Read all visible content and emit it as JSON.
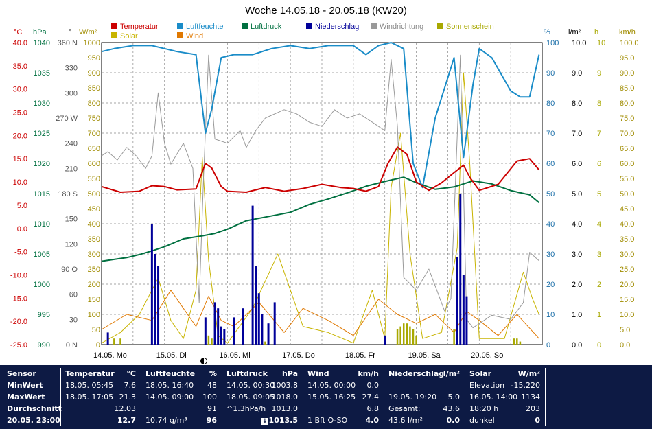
{
  "chart_data": {
    "type": "line",
    "title": "Woche 14.05.18 - 20.05.18 (KW20)",
    "legend": [
      {
        "name": "Temperatur",
        "color": "#cc0000"
      },
      {
        "name": "Luftfeuchte",
        "color": "#1a8cc8"
      },
      {
        "name": "Luftdruck",
        "color": "#007040"
      },
      {
        "name": "Niederschlag",
        "color": "#000099"
      },
      {
        "name": "Windrichtung",
        "color": "#999999"
      },
      {
        "name": "Sonnenschein",
        "color": "#a8a800"
      },
      {
        "name": "Solar",
        "color": "#c8b400"
      },
      {
        "name": "Wind",
        "color": "#e07800"
      }
    ],
    "x_labels": [
      "14.05. Mo",
      "15.05. Di",
      "16.05. Mi",
      "17.05. Do",
      "18.05. Fr",
      "19.05. Sa",
      "20.05. So"
    ],
    "x_range_days": [
      0,
      7
    ],
    "axes": {
      "temp": {
        "unit": "°C",
        "color": "#cc0000",
        "range": [
          -25,
          40
        ],
        "ticks": [
          "40.0",
          "35.0",
          "30.0",
          "25.0",
          "20.0",
          "15.0",
          "10.0",
          "5.0",
          "0.0",
          "-5.0",
          "-10.0",
          "-15.0",
          "-20.0",
          "-25.0"
        ]
      },
      "pressure": {
        "unit": "hPa",
        "color": "#007040",
        "range": [
          990,
          1040
        ],
        "ticks": [
          "1040",
          "1035",
          "1030",
          "1025",
          "1020",
          "1015",
          "1010",
          "1005",
          "1000",
          "995",
          "990"
        ]
      },
      "winddir": {
        "unit": "°",
        "color": "#555555",
        "ticks": [
          "360 N",
          "330",
          "300",
          "270 W",
          "240",
          "210",
          "180 S",
          "150",
          "120",
          "90 O",
          "60",
          "30",
          "0 N"
        ]
      },
      "solar": {
        "unit": "W/m²",
        "color": "#a08c00",
        "range": [
          0,
          1000
        ],
        "ticks": [
          "1000",
          "950",
          "900",
          "850",
          "800",
          "750",
          "700",
          "650",
          "600",
          "550",
          "500",
          "450",
          "400",
          "350",
          "300",
          "250",
          "200",
          "150",
          "100",
          "50",
          "0"
        ]
      },
      "humidity": {
        "unit": "%",
        "color": "#1a6ea8",
        "range": [
          0,
          100
        ],
        "ticks": [
          "100",
          "90",
          "80",
          "70",
          "60",
          "50",
          "40",
          "30",
          "20",
          "10",
          "0"
        ]
      },
      "rain": {
        "unit": "l/m²",
        "color": "#000000",
        "range": [
          0,
          10
        ],
        "ticks": [
          "10.0",
          "9.0",
          "8.0",
          "7.0",
          "6.0",
          "5.0",
          "4.0",
          "3.0",
          "2.0",
          "1.0",
          "0.0"
        ]
      },
      "sunhours": {
        "unit": "h",
        "color": "#a8a800",
        "range": [
          0,
          10
        ],
        "ticks": [
          "10",
          "9",
          "8",
          "7",
          "6",
          "5",
          "4",
          "3",
          "2",
          "1",
          "0"
        ]
      },
      "wind": {
        "unit": "km/h",
        "color": "#a08c00",
        "range": [
          0,
          100
        ],
        "ticks": [
          "100.0",
          "95.0",
          "90.0",
          "85.0",
          "80.0",
          "75.0",
          "70.0",
          "65.0",
          "60.0",
          "55.0",
          "50.0",
          "45.0",
          "40.0",
          "35.0",
          "30.0",
          "25.0",
          "20.0",
          "15.0",
          "10.0",
          "5.0",
          "0.0"
        ]
      }
    },
    "series": [
      {
        "name": "Temperatur",
        "axis": "temp",
        "color": "#cc0000",
        "x": [
          0,
          0.3,
          0.6,
          0.8,
          1.0,
          1.2,
          1.5,
          1.65,
          1.75,
          1.9,
          2.0,
          2.3,
          2.6,
          2.9,
          3.2,
          3.5,
          3.8,
          4.0,
          4.2,
          4.4,
          4.55,
          4.7,
          4.85,
          5.0,
          5.2,
          5.4,
          5.6,
          5.75,
          5.85,
          6.0,
          6.3,
          6.6,
          6.8,
          6.95
        ],
        "y": [
          9,
          7.8,
          8,
          9.2,
          9,
          8.3,
          8.5,
          14,
          13,
          9,
          8,
          7.8,
          8.8,
          8,
          8.6,
          9.5,
          8.8,
          8.6,
          8,
          9,
          14,
          17.5,
          16,
          10,
          8.2,
          9.8,
          12,
          13.6,
          11,
          8.2,
          9.5,
          14.5,
          15,
          12.6
        ]
      },
      {
        "name": "Luftfeuchte",
        "axis": "humidity",
        "color": "#1a8cc8",
        "x": [
          0,
          0.2,
          0.5,
          0.8,
          1.0,
          1.2,
          1.5,
          1.65,
          1.75,
          1.9,
          2.1,
          2.4,
          2.7,
          3.0,
          3.3,
          3.6,
          3.8,
          4.0,
          4.2,
          4.4,
          4.6,
          4.8,
          4.95,
          5.1,
          5.3,
          5.6,
          5.75,
          5.9,
          6.0,
          6.2,
          6.5,
          6.65,
          6.8,
          6.95
        ],
        "y": [
          97,
          98,
          99,
          99,
          98,
          97,
          96,
          70,
          78,
          95,
          96,
          96,
          98,
          99,
          98,
          99,
          99,
          99,
          96,
          99,
          100,
          98,
          60,
          52,
          75,
          95,
          62,
          86,
          98,
          95,
          84,
          82,
          82,
          96
        ]
      },
      {
        "name": "Luftdruck",
        "axis": "pressure",
        "color": "#007040",
        "x": [
          0,
          0.2,
          0.4,
          0.6,
          0.8,
          1.0,
          1.3,
          1.6,
          1.8,
          2.0,
          2.3,
          2.6,
          3.0,
          3.3,
          3.6,
          3.9,
          4.2,
          4.5,
          4.8,
          5.0,
          5.3,
          5.6,
          5.9,
          6.2,
          6.5,
          6.8,
          6.95
        ],
        "y": [
          1003.8,
          1004.1,
          1004.4,
          1004.9,
          1005.5,
          1006.2,
          1007.5,
          1008.0,
          1008.4,
          1009.1,
          1010.5,
          1011.1,
          1011.9,
          1013.2,
          1014.1,
          1015.1,
          1016.2,
          1017.0,
          1017.7,
          1016.8,
          1015.7,
          1016.1,
          1017.1,
          1016.6,
          1015.5,
          1014.8,
          1013.5
        ]
      },
      {
        "name": "Windrichtung",
        "axis": "winddir",
        "color": "#999999",
        "x": [
          0,
          0.1,
          0.25,
          0.4,
          0.55,
          0.7,
          0.8,
          0.9,
          1.0,
          1.1,
          1.3,
          1.45,
          1.55,
          1.62,
          1.7,
          1.8,
          2.0,
          2.2,
          2.3,
          2.45,
          2.6,
          2.9,
          3.1,
          3.3,
          3.5,
          3.7,
          3.9,
          4.1,
          4.3,
          4.5,
          4.6,
          4.7,
          4.8,
          5.0,
          5.2,
          5.35,
          5.45,
          5.55,
          5.7,
          5.8,
          5.9,
          6.0,
          6.2,
          6.5,
          6.7,
          6.8,
          6.95
        ],
        "y": [
          225,
          230,
          220,
          235,
          225,
          210,
          225,
          300,
          240,
          215,
          240,
          210,
          50,
          200,
          345,
          245,
          240,
          255,
          235,
          255,
          270,
          280,
          275,
          265,
          260,
          280,
          270,
          275,
          265,
          255,
          340,
          260,
          80,
          65,
          90,
          60,
          40,
          55,
          345,
          30,
          20,
          25,
          35,
          30,
          50,
          110,
          100
        ]
      },
      {
        "name": "Solar",
        "axis": "solar",
        "color": "#c8b400",
        "x": [
          0,
          0.3,
          0.6,
          0.9,
          1.1,
          1.3,
          1.5,
          1.6,
          1.7,
          1.85,
          2.0,
          2.4,
          2.8,
          3.2,
          3.6,
          4.0,
          4.3,
          4.5,
          4.6,
          4.75,
          4.9,
          5.1,
          5.4,
          5.65,
          5.75,
          5.85,
          6.0,
          6.4,
          6.7,
          6.85,
          6.95
        ],
        "y": [
          5,
          40,
          100,
          220,
          80,
          20,
          180,
          620,
          280,
          30,
          5,
          120,
          300,
          60,
          40,
          5,
          180,
          20,
          520,
          700,
          300,
          20,
          40,
          320,
          900,
          600,
          20,
          20,
          240,
          150,
          100
        ]
      },
      {
        "name": "Wind",
        "axis": "wind",
        "color": "#e07800",
        "x": [
          0,
          0.4,
          0.8,
          1.1,
          1.3,
          1.5,
          1.7,
          1.9,
          2.1,
          2.5,
          2.9,
          3.2,
          3.6,
          4.0,
          4.4,
          4.7,
          5.0,
          5.3,
          5.6,
          5.8,
          6.0,
          6.3,
          6.6,
          6.95
        ],
        "y": [
          5,
          10,
          8,
          18,
          12,
          6,
          16,
          8,
          6,
          14,
          4,
          12,
          8,
          3,
          15,
          10,
          7,
          10,
          4,
          11,
          8,
          3,
          10,
          2
        ]
      },
      {
        "name": "Niederschlag",
        "axis": "rain",
        "color": "#000099",
        "style": "bars",
        "x": [
          0.1,
          0.8,
          0.85,
          0.9,
          1.65,
          1.8,
          1.85,
          1.9,
          1.95,
          2.1,
          2.25,
          2.4,
          2.45,
          2.5,
          2.55,
          2.65,
          2.75,
          4.5,
          5.65,
          5.7,
          5.75,
          5.8
        ],
        "y": [
          0.4,
          4.0,
          3.0,
          2.6,
          0.9,
          1.4,
          1.2,
          0.6,
          0.5,
          0.9,
          1.2,
          4.6,
          2.6,
          1.7,
          1.0,
          0.7,
          1.4,
          0.3,
          2.9,
          5.0,
          2.3,
          1.6
        ]
      },
      {
        "name": "Sonnenschein",
        "axis": "sunhours",
        "color": "#a8a800",
        "style": "bars",
        "x": [
          0.2,
          0.3,
          1.7,
          1.75,
          2.6,
          4.7,
          4.75,
          4.8,
          4.85,
          4.9,
          4.95,
          5.0,
          5.6,
          5.65,
          5.7,
          5.75,
          6.55,
          6.6,
          6.65
        ],
        "y": [
          0.2,
          0.2,
          0.3,
          0.2,
          0.1,
          0.5,
          0.6,
          0.7,
          0.7,
          0.6,
          0.5,
          0.3,
          0.5,
          0.6,
          0.5,
          0.4,
          0.2,
          0.2,
          0.1
        ]
      }
    ]
  },
  "table": {
    "sensor": {
      "header": "Sensor",
      "rows": [
        "MinWert",
        "MaxWert",
        "Durchschnitt",
        "20.05. 23:00"
      ]
    },
    "temperatur": {
      "header": "Temperatur",
      "unit": "°C",
      "rows": [
        [
          "18.05. 05:45",
          "7.6"
        ],
        [
          "18.05. 17:05",
          "21.3"
        ],
        [
          "",
          "12.03"
        ],
        [
          "",
          "12.7"
        ]
      ]
    },
    "luftfeuchte": {
      "header": "Luftfeuchte",
      "unit": "%",
      "rows": [
        [
          "18.05. 16:40",
          "48"
        ],
        [
          "14.05. 09:00",
          "100"
        ],
        [
          "",
          "91"
        ],
        [
          "10.74 g/m³",
          "96"
        ]
      ]
    },
    "luftdruck": {
      "header": "Luftdruck",
      "unit": "hPa",
      "rows": [
        [
          "14.05. 00:30",
          "1003.8"
        ],
        [
          "18.05. 09:05",
          "1018.0"
        ],
        [
          "^1.3hPa/h",
          "1013.0"
        ],
        [
          "",
          "1013.5"
        ]
      ]
    },
    "wind": {
      "header": "Wind",
      "unit": "km/h",
      "rows": [
        [
          "14.05. 00:00",
          "0.0"
        ],
        [
          "15.05. 16:25",
          "27.4"
        ],
        [
          "",
          "6.8"
        ],
        [
          "1 Bft O-SO",
          "4.0"
        ]
      ]
    },
    "niederschlag": {
      "header": "Niederschlag",
      "unit": "l/m²",
      "rows": [
        [
          "",
          ""
        ],
        [
          "19.05. 19:20",
          "5.0"
        ],
        [
          "Gesamt:",
          "43.6"
        ],
        [
          "43.6 l/m²",
          "0.0"
        ]
      ]
    },
    "solar": {
      "header": "Solar",
      "unit": "W/m²",
      "rows": [
        [
          "Elevation",
          "-15.220"
        ],
        [
          "16.05. 14:00",
          "1134"
        ],
        [
          "18:20 h",
          "203"
        ],
        [
          "dunkel",
          "0"
        ]
      ]
    }
  }
}
